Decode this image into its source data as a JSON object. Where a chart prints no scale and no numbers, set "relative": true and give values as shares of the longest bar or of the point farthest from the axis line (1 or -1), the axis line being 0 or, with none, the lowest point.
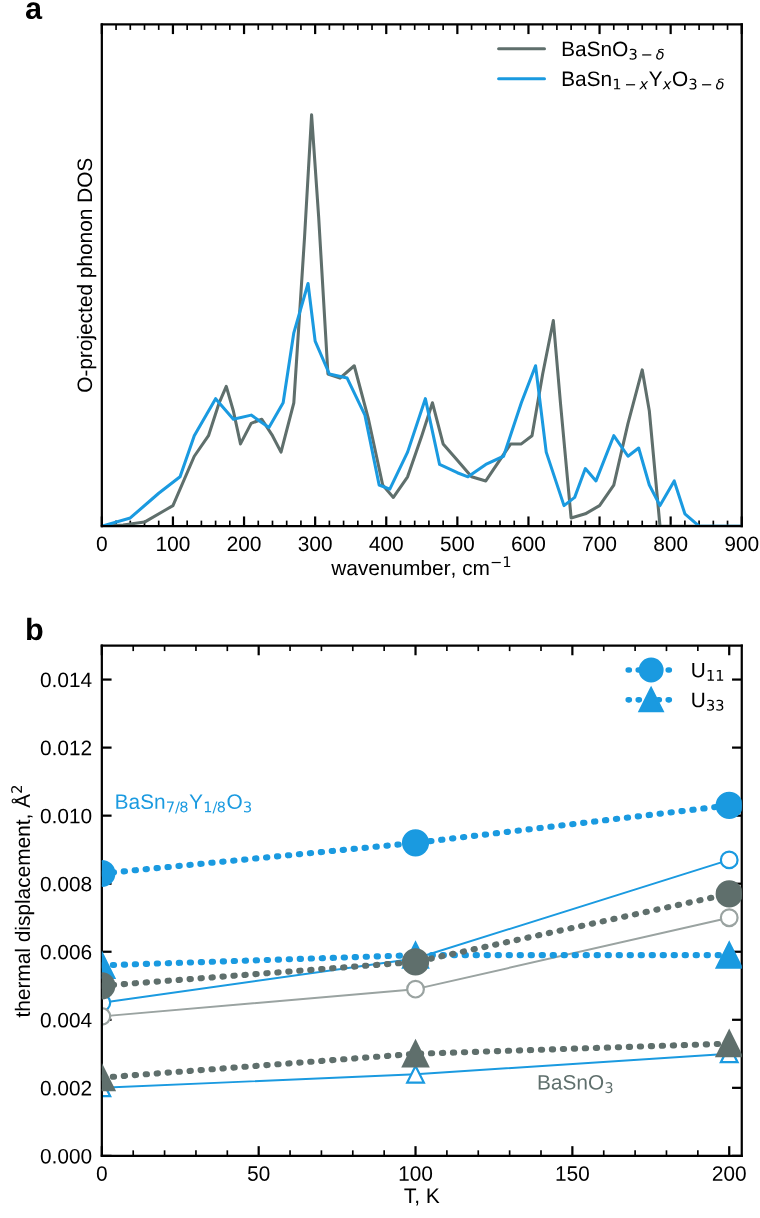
{
  "chart_data": [
    {
      "type": "line",
      "title": "a",
      "xlabel": "wavenumber, cm$^{−1}$",
      "ylabel": "O-projected phonon DOS",
      "relative": true,
      "xlim": [
        0,
        900
      ],
      "xticks": [
        0,
        100,
        200,
        300,
        400,
        500,
        600,
        700,
        800,
        900
      ],
      "legend": "top right",
      "grid": false,
      "series": [
        {
          "name": "BaSnO$_{3−δ}$",
          "color": "#5f6f6c",
          "x": [
            0,
            30,
            60,
            90,
            100,
            130,
            150,
            165,
            175,
            185,
            195,
            210,
            225,
            240,
            252,
            270,
            285,
            295,
            305,
            318,
            335,
            355,
            375,
            395,
            410,
            430,
            450,
            465,
            480,
            500,
            520,
            540,
            575,
            590,
            605,
            620,
            635,
            645,
            660,
            680,
            700,
            720,
            740,
            760,
            770,
            785,
            900
          ],
          "values": [
            0,
            0.003,
            0.01,
            0.04,
            0.05,
            0.17,
            0.22,
            0.3,
            0.34,
            0.28,
            0.2,
            0.25,
            0.26,
            0.22,
            0.18,
            0.3,
            0.7,
            1.0,
            0.75,
            0.37,
            0.36,
            0.39,
            0.26,
            0.1,
            0.07,
            0.12,
            0.22,
            0.3,
            0.2,
            0.16,
            0.12,
            0.11,
            0.2,
            0.2,
            0.22,
            0.37,
            0.5,
            0.3,
            0.02,
            0.03,
            0.05,
            0.1,
            0.25,
            0.38,
            0.28,
            0,
            0
          ]
        },
        {
          "name": "BaSn$_{1−x}$Y$_{x}$O$_{3−δ}$",
          "color": "#1a9ae0",
          "x": [
            0,
            40,
            80,
            110,
            130,
            160,
            185,
            210,
            235,
            255,
            270,
            290,
            300,
            320,
            345,
            370,
            390,
            405,
            430,
            455,
            475,
            500,
            515,
            540,
            565,
            590,
            610,
            625,
            650,
            665,
            680,
            695,
            720,
            740,
            755,
            770,
            785,
            805,
            820,
            840,
            900
          ],
          "values": [
            0,
            0.02,
            0.08,
            0.12,
            0.22,
            0.31,
            0.26,
            0.27,
            0.24,
            0.3,
            0.47,
            0.59,
            0.45,
            0.37,
            0.36,
            0.27,
            0.1,
            0.09,
            0.18,
            0.31,
            0.15,
            0.13,
            0.12,
            0.15,
            0.17,
            0.3,
            0.39,
            0.18,
            0.05,
            0.07,
            0.14,
            0.11,
            0.22,
            0.17,
            0.19,
            0.1,
            0.05,
            0.11,
            0.03,
            0,
            0
          ]
        }
      ]
    },
    {
      "type": "line",
      "title": "b",
      "xlabel": "T, K",
      "ylabel": "thermal displacement, Å$^{2}$",
      "x": [
        0,
        100,
        200
      ],
      "xlim": [
        0,
        204
      ],
      "xticks": [
        0,
        50,
        100,
        150,
        200
      ],
      "ylim": [
        0,
        0.015
      ],
      "yticks": [
        {
          "value": 0,
          "label": "0.000"
        },
        {
          "value": 0.002,
          "label": "0.002"
        },
        {
          "value": 0.004,
          "label": "0.004"
        },
        {
          "value": 0.006,
          "label": "0.006"
        },
        {
          "value": 0.008,
          "label": "0.008"
        },
        {
          "value": 0.01,
          "label": "0.010"
        },
        {
          "value": 0.012,
          "label": "0.012"
        },
        {
          "value": 0.014,
          "label": "0.014"
        }
      ],
      "legend": "top right",
      "grid": false,
      "annotations": [
        "BaSn$_{7/8}$Y$_{1/8}$O$_{3}$",
        "BaSnO$_{3}$"
      ],
      "series": [
        {
          "name": "U$_{11}$",
          "color": "#1a9ae0",
          "marker": "circle",
          "line_style": "dotted",
          "values": [
            0.0083,
            0.0092,
            0.0103
          ]
        },
        {
          "name": "U$_{33}$",
          "color": "#1a9ae0",
          "marker": "triangle",
          "line_style": "dotted",
          "values": [
            0.0056,
            0.0059,
            0.0059
          ]
        },
        {
          "color": "#5f6f6c",
          "marker": "circle",
          "line_style": "dotted",
          "values": [
            0.005,
            0.0057,
            0.0077
          ]
        },
        {
          "color": "#5f6f6c",
          "marker": "triangle",
          "line_style": "dotted",
          "values": [
            0.0023,
            0.003,
            0.0033
          ]
        },
        {
          "color": "#1a9ae0",
          "marker": "circle",
          "line_style": "solid",
          "values": [
            0.0045,
            0.0058,
            0.0087
          ]
        },
        {
          "color": "#9aa3a1",
          "marker": "circle",
          "line_style": "solid",
          "values": [
            0.0041,
            0.0049,
            0.007
          ]
        },
        {
          "color": "#1a9ae0",
          "marker": "triangle",
          "line_style": "solid",
          "values": [
            0.002,
            0.0024,
            0.003
          ]
        }
      ]
    }
  ]
}
